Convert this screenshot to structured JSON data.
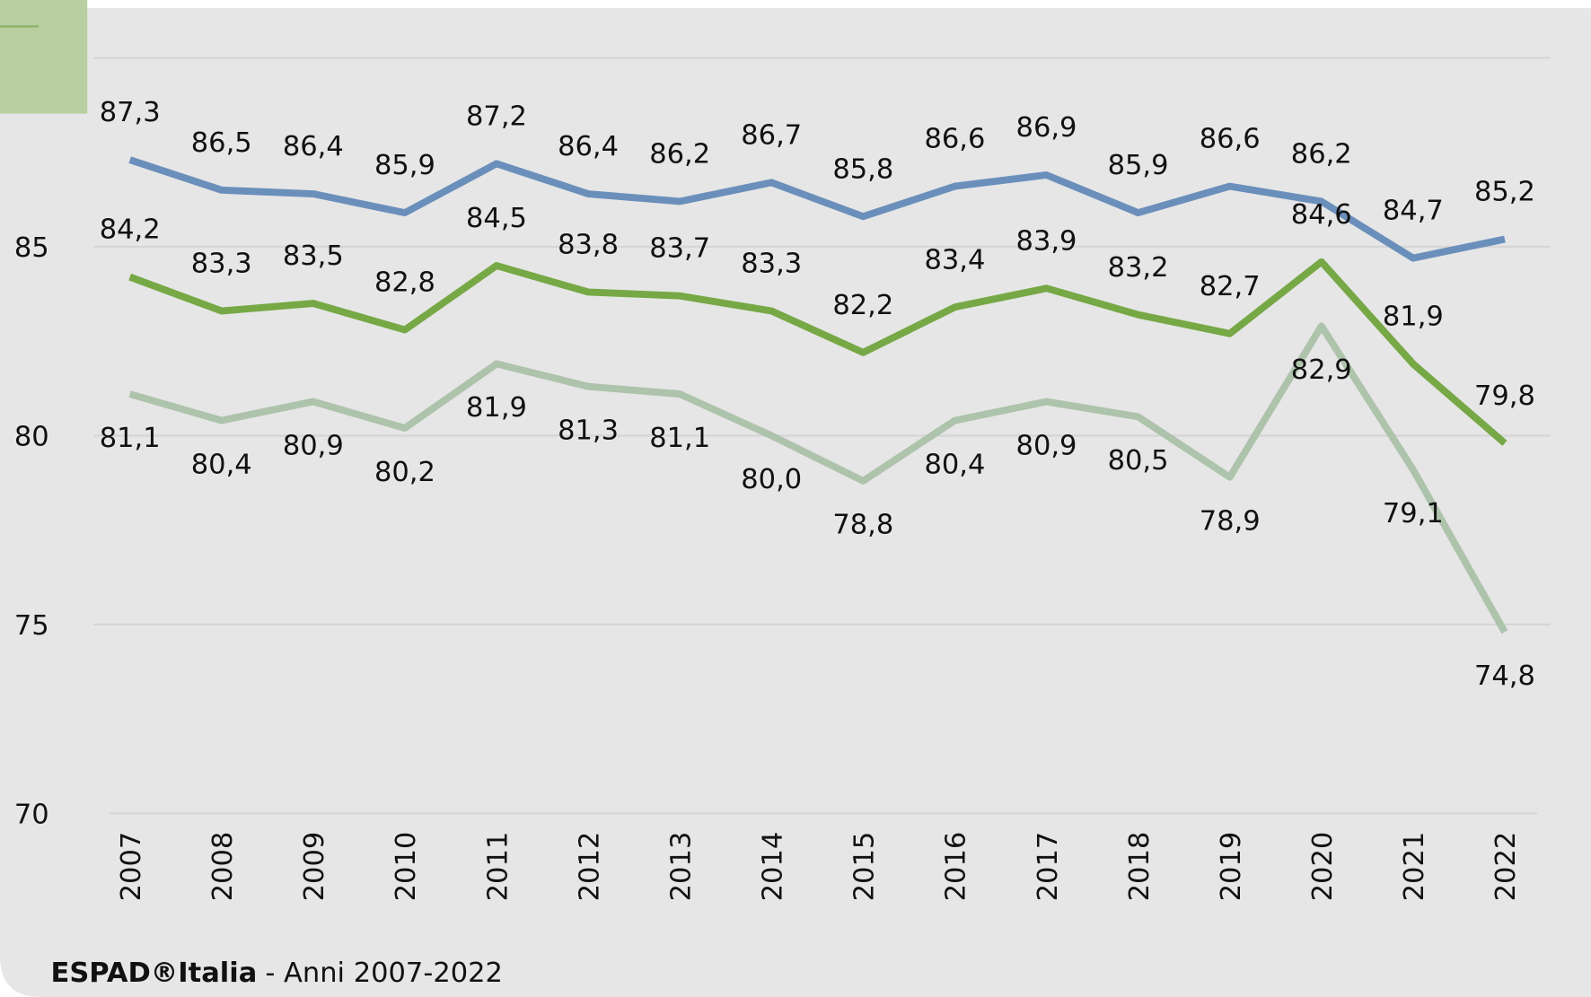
{
  "chart_data": {
    "type": "line",
    "categories": [
      "2007",
      "2008",
      "2009",
      "2010",
      "2011",
      "2012",
      "2013",
      "2014",
      "2015",
      "2016",
      "2017",
      "2018",
      "2019",
      "2020",
      "2021",
      "2022"
    ],
    "series": [
      {
        "color": "#6b8fbb",
        "values": [
          87.3,
          86.5,
          86.4,
          85.9,
          87.2,
          86.4,
          86.2,
          86.7,
          85.8,
          86.6,
          86.9,
          85.9,
          86.6,
          86.2,
          84.7,
          85.2
        ],
        "value_labels": [
          "87,3",
          "86,5",
          "86,4",
          "85,9",
          "87,2",
          "86,4",
          "86,2",
          "86,7",
          "85,8",
          "86,6",
          "86,9",
          "85,9",
          "86,6",
          "86,2",
          "84,7",
          "85,2"
        ]
      },
      {
        "color": "#76a845",
        "values": [
          84.2,
          83.3,
          83.5,
          82.8,
          84.5,
          83.8,
          83.7,
          83.3,
          82.2,
          83.4,
          83.9,
          83.2,
          82.7,
          84.6,
          81.9,
          79.8
        ],
        "value_labels": [
          "84,2",
          "83,3",
          "83,5",
          "82,8",
          "84,5",
          "83,8",
          "83,7",
          "83,3",
          "82,2",
          "83,4",
          "83,9",
          "83,2",
          "82,7",
          "84,6",
          "81,9",
          "79,8"
        ]
      },
      {
        "color": "#adc3ab",
        "values": [
          81.1,
          80.4,
          80.9,
          80.2,
          81.9,
          81.3,
          81.1,
          80.0,
          78.8,
          80.4,
          80.9,
          80.5,
          78.9,
          82.9,
          79.1,
          74.8
        ],
        "value_labels": [
          "81,1",
          "80,4",
          "80,9",
          "80,2",
          "81,9",
          "81,3",
          "81,1",
          "80,0",
          "78,8",
          "80,4",
          "80,9",
          "80,5",
          "78,9",
          "82,9",
          "79,1",
          "74,8"
        ]
      }
    ],
    "ylim": [
      70,
      90
    ],
    "yticks": [
      70,
      75,
      80,
      85
    ],
    "grid": true,
    "source": {
      "bold": "ESPAD®Italia",
      "text": "- Anni 2007-2022"
    }
  }
}
